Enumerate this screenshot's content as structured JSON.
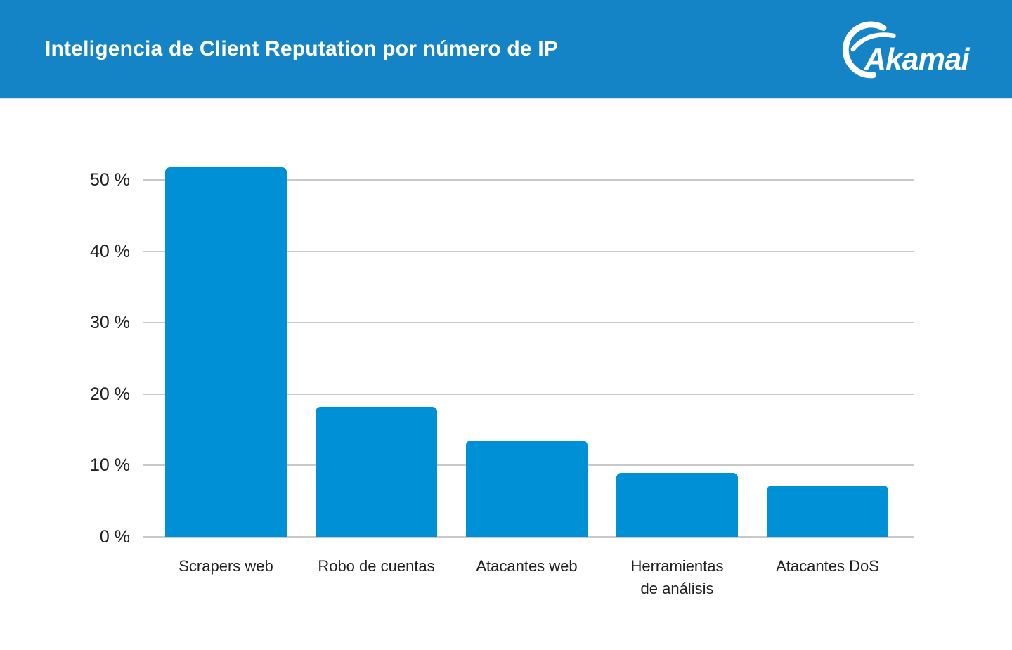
{
  "header": {
    "title": "Inteligencia de Client Reputation por número de IP",
    "logo_text": "Akamai",
    "background_color": "#1484c6"
  },
  "chart_data": {
    "type": "bar",
    "title": "Inteligencia de Client Reputation por número de IP",
    "categories": [
      "Scrapers web",
      "Robo de cuentas",
      "Atacantes web",
      "Herramientas de análisis",
      "Atacantes DoS"
    ],
    "values": [
      51.8,
      18.2,
      13.5,
      9.0,
      7.2
    ],
    "unit": "%",
    "xlabel": "",
    "ylabel": "",
    "ylim": [
      0,
      55
    ],
    "yticks": [
      0,
      10,
      20,
      30,
      40,
      50
    ],
    "ytick_labels": [
      "0 %",
      "10 %",
      "20 %",
      "30 %",
      "40 %",
      "50 %"
    ],
    "xtick_lines": [
      [
        "Scrapers web"
      ],
      [
        "Robo de cuentas"
      ],
      [
        "Atacantes web"
      ],
      [
        "Herramientas",
        "de análisis"
      ],
      [
        "Atacantes DoS"
      ]
    ],
    "grid": true,
    "legend": "none",
    "bar_color": "#0090d6",
    "gridline_color": "#c9c9c9",
    "tick_text_color": "#212121"
  }
}
